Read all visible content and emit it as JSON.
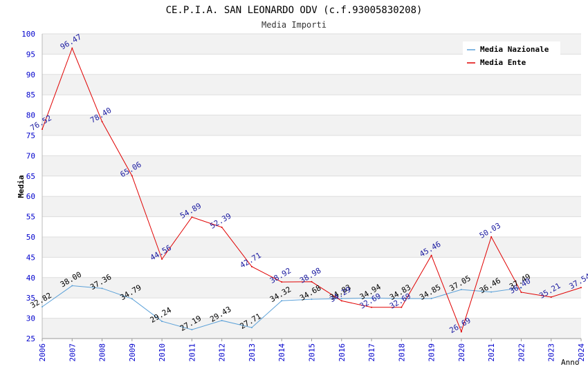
{
  "chart_data": {
    "type": "line",
    "title": "CE.P.I.A. SAN LEONARDO ODV (c.f.93005830208)",
    "subtitle": "Media Importi",
    "ylabel": "Media",
    "xlabel": "Anno",
    "ylim": [
      25,
      100
    ],
    "yticks": [
      25,
      30,
      35,
      40,
      45,
      50,
      55,
      60,
      65,
      70,
      75,
      80,
      85,
      90,
      95,
      100
    ],
    "categories": [
      "2006",
      "2007",
      "2008",
      "2009",
      "2010",
      "2011",
      "2012",
      "2013",
      "2014",
      "2015",
      "2016",
      "2017",
      "2018",
      "2019",
      "2020",
      "2021",
      "2022",
      "2023",
      "2024"
    ],
    "series": [
      {
        "name": "Media Nazionale",
        "color": "#5aa0d8",
        "label_color": "#000000",
        "values": [
          32.82,
          38.0,
          37.36,
          34.79,
          29.24,
          27.19,
          29.43,
          27.71,
          34.32,
          34.68,
          34.83,
          34.94,
          34.83,
          34.85,
          37.05,
          36.46,
          37.49,
          null,
          null
        ],
        "labels": [
          "32.82",
          "38.00",
          "37.36",
          "34.79",
          "29.24",
          "27.19",
          "29.43",
          "27.71",
          "34.32",
          "34.68",
          "34.83",
          "34.94",
          "34.83",
          "34.85",
          "37.05",
          "36.46",
          "37.49",
          "",
          ""
        ]
      },
      {
        "name": "Media Ente",
        "color": "#e00000",
        "label_color": "#1a1aa0",
        "values": [
          76.52,
          96.47,
          78.4,
          65.06,
          44.56,
          54.89,
          52.39,
          42.71,
          38.92,
          38.98,
          34.29,
          32.69,
          32.69,
          45.46,
          26.69,
          50.03,
          36.4,
          35.21,
          37.54
        ],
        "labels": [
          "76.52",
          "96.47",
          "78.40",
          "65.06",
          "44.56",
          "54.89",
          "52.39",
          "42.71",
          "38.92",
          "38.98",
          "34.29",
          "32.69",
          "32.69",
          "45.46",
          "26.69",
          "50.03",
          "36.40",
          "35.21",
          "37.54"
        ]
      }
    ],
    "legend_position": "top-right",
    "grid": true,
    "band_color": "#f2f2f2",
    "grid_color": "#dddddd",
    "axis_label_color": "#0000cc"
  }
}
